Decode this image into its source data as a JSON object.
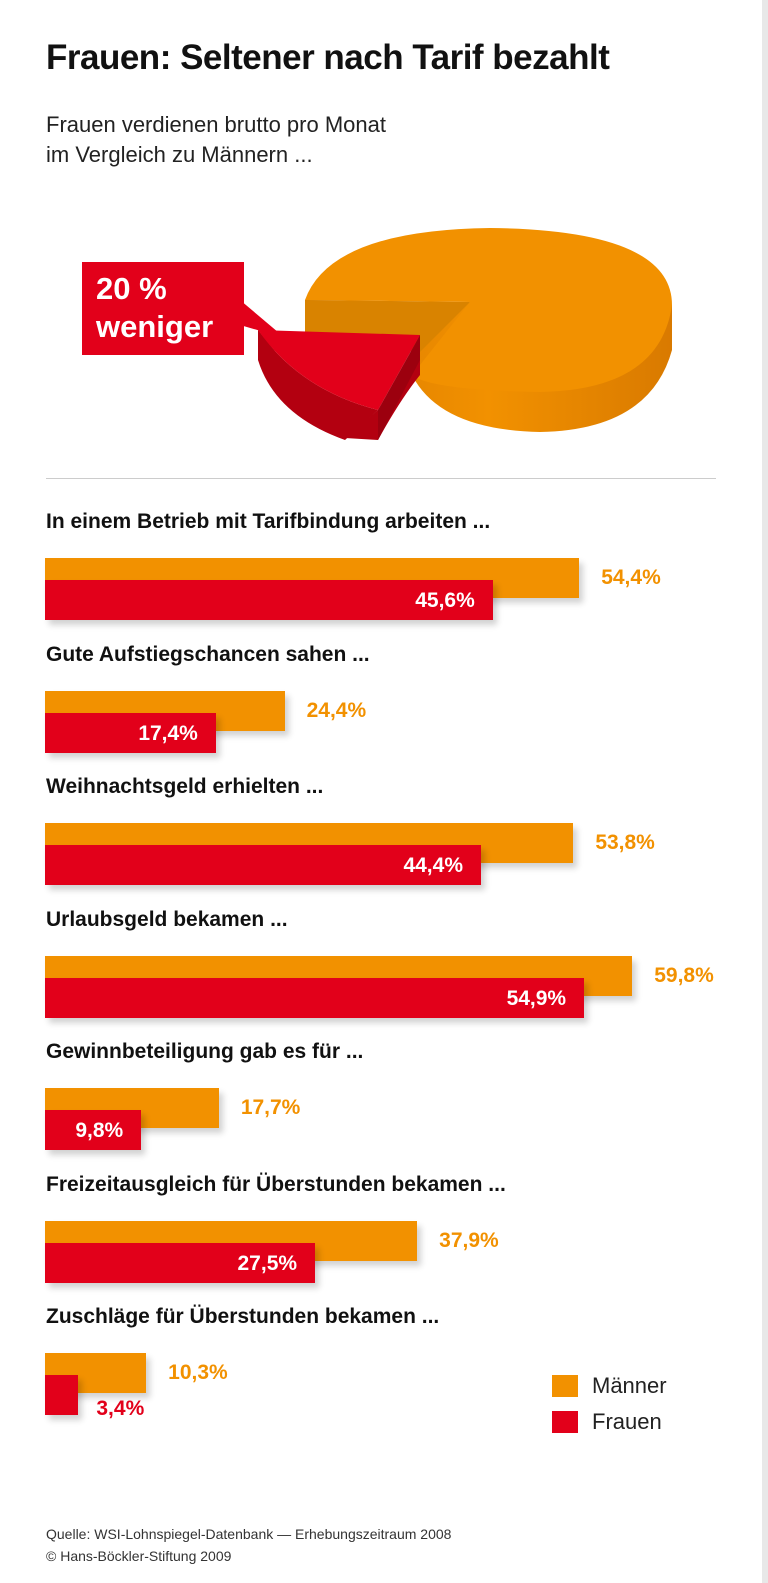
{
  "title": "Frauen: Seltener nach Tarif bezahlt",
  "subtitle_line1": "Frauen verdienen brutto pro Monat",
  "subtitle_line2": "im Vergleich zu Männern ...",
  "callout": {
    "value": "20 %",
    "text": "weniger"
  },
  "colors": {
    "maenner": "#f29100",
    "frauen": "#e2001a"
  },
  "chart_data": {
    "type": "bar",
    "orientation": "horizontal",
    "unit": "%",
    "categories": [
      "In einem Betrieb mit Tarifbindung arbeiten ...",
      "Gute Aufstiegschancen sahen ...",
      "Weihnachtsgeld erhielten ...",
      "Urlaubsgeld bekamen ...",
      "Gewinnbeteiligung gab es für ...",
      "Freizeitausgleich für Überstunden bekamen ...",
      "Zuschläge für Überstunden bekamen ..."
    ],
    "series": [
      {
        "name": "Männer",
        "values": [
          54.4,
          24.4,
          53.8,
          59.8,
          17.7,
          37.9,
          10.3
        ],
        "labels": [
          "54,4%",
          "24,4%",
          "53,8%",
          "59,8%",
          "17,7%",
          "37,9%",
          "10,3%"
        ]
      },
      {
        "name": "Frauen",
        "values": [
          45.6,
          17.4,
          44.4,
          54.9,
          9.8,
          27.5,
          3.4
        ],
        "labels": [
          "45,6%",
          "17,4%",
          "44,4%",
          "54,9%",
          "9,8%",
          "27,5%",
          "3,4%"
        ]
      }
    ],
    "legend": "bottom-right",
    "pie": {
      "type": "pie",
      "values": [
        80,
        20
      ],
      "note": "Frauen 20 % weniger"
    }
  },
  "source_line1": "Quelle: WSI-Lohnspiegel-Datenbank — Erhebungszeitraum 2008",
  "source_line2": "© Hans-Böckler-Stiftung 2009"
}
